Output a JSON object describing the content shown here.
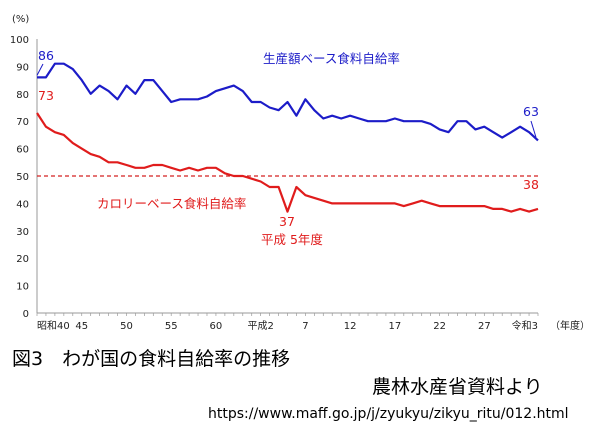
{
  "chart_data": {
    "type": "line",
    "unit_label": "(%)",
    "x_unit_label": "（年度）",
    "ylim": [
      0,
      100
    ],
    "yticks": [
      0,
      10,
      20,
      30,
      40,
      50,
      60,
      70,
      80,
      90,
      100
    ],
    "xlim": [
      1965,
      2021
    ],
    "xticks": [
      {
        "x": 1965,
        "label": "昭和40"
      },
      {
        "x": 1970,
        "label": "45"
      },
      {
        "x": 1975,
        "label": "50"
      },
      {
        "x": 1980,
        "label": "55"
      },
      {
        "x": 1985,
        "label": "60"
      },
      {
        "x": 1990,
        "label": "平成2"
      },
      {
        "x": 1995,
        "label": "7"
      },
      {
        "x": 2000,
        "label": "12"
      },
      {
        "x": 2005,
        "label": "17"
      },
      {
        "x": 2010,
        "label": "22"
      },
      {
        "x": 2015,
        "label": "27"
      },
      {
        "x": 2021,
        "label": "令和3"
      }
    ],
    "reference_line": {
      "y": 50,
      "color": "#d42020",
      "style": "dashed"
    },
    "x": [
      1965,
      1966,
      1967,
      1968,
      1969,
      1970,
      1971,
      1972,
      1973,
      1974,
      1975,
      1976,
      1977,
      1978,
      1979,
      1980,
      1981,
      1982,
      1983,
      1984,
      1985,
      1986,
      1987,
      1988,
      1989,
      1990,
      1991,
      1992,
      1993,
      1994,
      1995,
      1996,
      1997,
      1998,
      1999,
      2000,
      2001,
      2002,
      2003,
      2004,
      2005,
      2006,
      2007,
      2008,
      2009,
      2010,
      2011,
      2012,
      2013,
      2014,
      2015,
      2016,
      2017,
      2018,
      2019,
      2020,
      2021
    ],
    "series": [
      {
        "name": "生産額ベース食料自給率",
        "color": "#1c1cc8",
        "values": [
          86,
          86,
          91,
          91,
          89,
          85,
          80,
          83,
          81,
          78,
          83,
          80,
          85,
          85,
          81,
          77,
          78,
          78,
          78,
          79,
          81,
          82,
          83,
          81,
          77,
          77,
          75,
          74,
          77,
          72,
          78,
          74,
          71,
          72,
          71,
          72,
          71,
          70,
          70,
          70,
          71,
          70,
          70,
          70,
          69,
          67,
          66,
          70,
          70,
          67,
          68,
          66,
          64,
          66,
          68,
          66,
          63
        ]
      },
      {
        "name": "カロリーベース食料自給率",
        "color": "#e01c1c",
        "values": [
          73,
          68,
          66,
          65,
          62,
          60,
          58,
          57,
          55,
          55,
          54,
          53,
          53,
          54,
          54,
          53,
          52,
          53,
          52,
          53,
          53,
          51,
          50,
          50,
          49,
          48,
          46,
          46,
          37,
          46,
          43,
          42,
          41,
          40,
          40,
          40,
          40,
          40,
          40,
          40,
          40,
          39,
          40,
          41,
          40,
          39,
          39,
          39,
          39,
          39,
          39,
          38,
          38,
          37,
          38,
          37,
          38
        ]
      }
    ],
    "annotations": [
      {
        "text": "86",
        "x": 1965,
        "y": 86,
        "series": 0
      },
      {
        "text": "73",
        "x": 1965,
        "y": 73,
        "series": 1
      },
      {
        "text": "63",
        "x": 2021,
        "y": 63,
        "series": 0
      },
      {
        "text": "38",
        "x": 2021,
        "y": 38,
        "series": 1
      },
      {
        "text": "37",
        "x": 1993,
        "y": 37,
        "series": 1
      },
      {
        "text": "平成 5年度",
        "x": 1993,
        "y": 37,
        "series": 1
      }
    ]
  },
  "caption": {
    "title": "図3　わが国の食料自給率の推移",
    "source": "農林水産省資料より",
    "url": "https://www.maff.go.jp/j/zyukyu/zikyu_ritu/012.html"
  }
}
